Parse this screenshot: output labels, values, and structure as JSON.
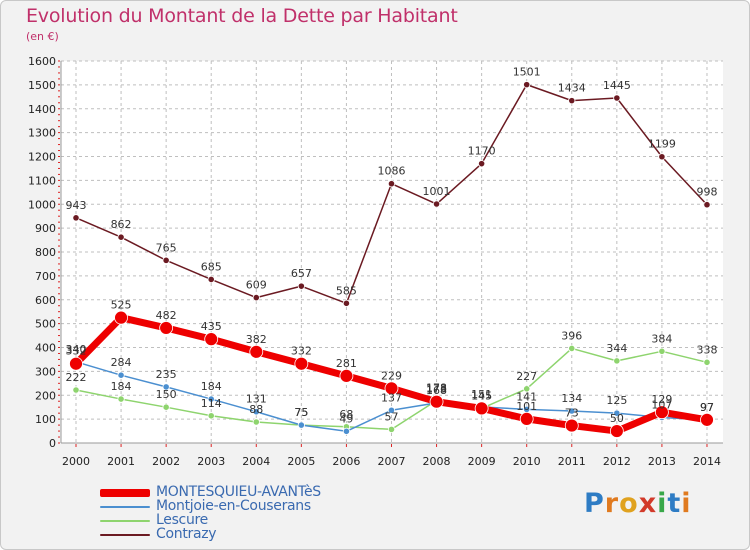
{
  "header": {
    "title": "Evolution du Montant de la Dette par Habitant",
    "subtitle": "(en €)"
  },
  "brand": {
    "logo_letters": [
      "P",
      "r",
      "o",
      "x",
      "i",
      "t",
      "i"
    ],
    "logo_colors": [
      "#2e7cc4",
      "#e07a1f",
      "#e0a21f",
      "#d23a2a",
      "#39a84a",
      "#2e7cc4",
      "#e07a1f"
    ]
  },
  "chart_data": {
    "type": "line",
    "categories": [
      "2000",
      "2001",
      "2002",
      "2003",
      "2004",
      "2005",
      "2006",
      "2007",
      "2008",
      "2009",
      "2010",
      "2011",
      "2012",
      "2013",
      "2014"
    ],
    "yticks": [
      "0",
      "100",
      "200",
      "300",
      "400",
      "500",
      "600",
      "700",
      "800",
      "900",
      "1000",
      "1100",
      "1200",
      "1300",
      "1400",
      "1500",
      "1600"
    ],
    "ylim": [
      0,
      1600
    ],
    "grid": true,
    "legend_position": "bottom-left",
    "series": [
      {
        "name": "Contrazy",
        "color": "#6b1a22",
        "values": [
          943,
          862,
          765,
          685,
          609,
          657,
          585,
          1086,
          1001,
          1170,
          1501,
          1434,
          1445,
          1199,
          998
        ],
        "labels": [
          "943",
          "862",
          "765",
          "685",
          "609",
          "657",
          "585",
          "1086",
          "1001",
          "1170",
          "1501",
          "1434",
          "1445",
          "1199",
          "998"
        ]
      },
      {
        "name": "Lescure",
        "color": "#8ed46e",
        "values": [
          222,
          184,
          150,
          114,
          88,
          75,
          68,
          57,
          178,
          145,
          227,
          396,
          344,
          384,
          338
        ],
        "labels": [
          "222",
          "184",
          "150",
          "114",
          "88",
          "75",
          "68",
          "57",
          "178",
          "145",
          "227",
          "396",
          "344",
          "384",
          "338"
        ]
      },
      {
        "name": "Montjoie-en-Couserans",
        "color": "#4b8fd0",
        "values": [
          340,
          284,
          235,
          184,
          131,
          75,
          49,
          137,
          168,
          151,
          141,
          134,
          125,
          107,
          97
        ],
        "labels": [
          "340",
          "284",
          "235",
          "184",
          "131",
          "75",
          "49",
          "137",
          "168",
          "151",
          "141",
          "134",
          "125",
          "107",
          "97"
        ]
      },
      {
        "name": "MONTESQUIEU-AVANTèS",
        "color": "#ee0000",
        "values": [
          332,
          525,
          482,
          435,
          382,
          332,
          281,
          229,
          173,
          145,
          101,
          73,
          50,
          129,
          97
        ],
        "labels": [
          "332",
          "525",
          "482",
          "435",
          "382",
          "332",
          "281",
          "229",
          "173",
          "145",
          "101",
          "73",
          "50",
          "129",
          "97"
        ]
      }
    ],
    "legend_order": [
      "MONTESQUIEU-AVANTèS",
      "Montjoie-en-Couserans",
      "Lescure",
      "Contrazy"
    ]
  }
}
